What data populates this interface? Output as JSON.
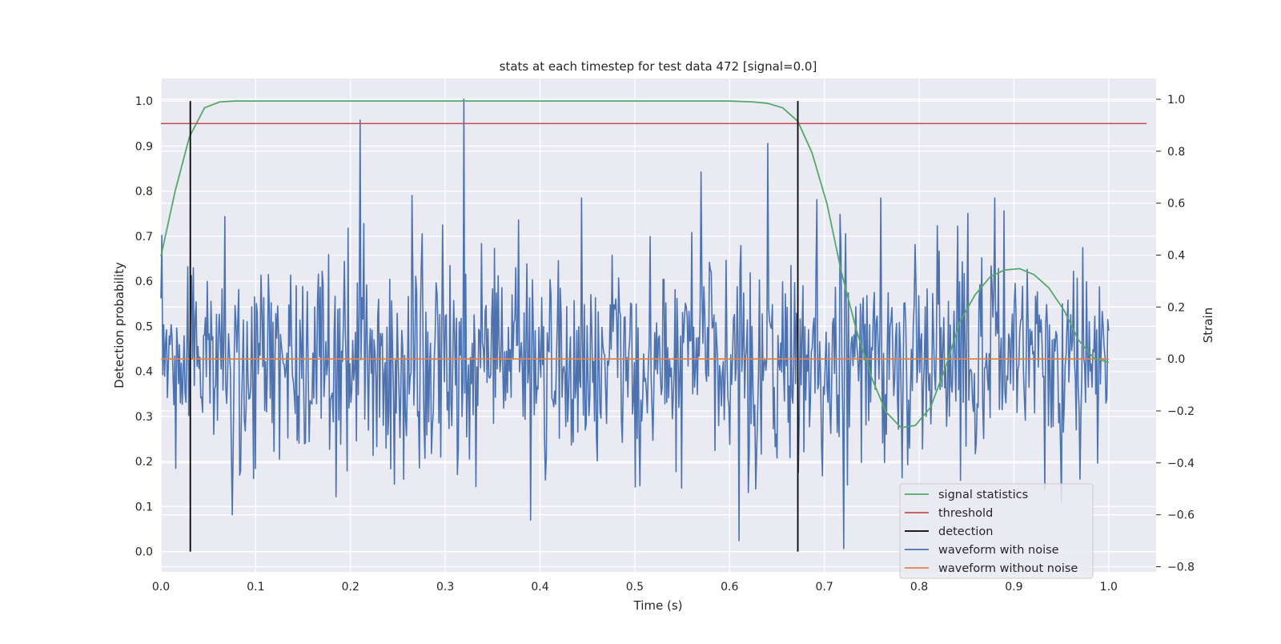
{
  "chart_data": {
    "type": "line",
    "title": "stats at each timestep for test data 472 [signal=0.0]",
    "xlabel": "Time (s)",
    "ylabel": "Detection probability",
    "ylabel_right": "Strain",
    "xlim": [
      0.0,
      1.05
    ],
    "ylim": [
      -0.045,
      1.05
    ],
    "ylim_right": [
      -0.82,
      1.08
    ],
    "xticks": [
      "0.0",
      "0.1",
      "0.2",
      "0.3",
      "0.4",
      "0.5",
      "0.6",
      "0.7",
      "0.8",
      "0.9",
      "1.0"
    ],
    "yticks": [
      "0.0",
      "0.1",
      "0.2",
      "0.3",
      "0.4",
      "0.5",
      "0.6",
      "0.7",
      "0.8",
      "0.9",
      "1.0"
    ],
    "yticks_right": [
      "−0.8",
      "−0.6",
      "−0.4",
      "−0.2",
      "0.0",
      "0.2",
      "0.4",
      "0.6",
      "0.8",
      "1.0"
    ],
    "grid": true,
    "legend_position": "lower-right",
    "colors": {
      "signal": "#55a868",
      "threshold": "#c44e52",
      "detection": "#000000",
      "noisy": "#4c72b0",
      "clean": "#dd8452",
      "axes_bg": "#eaeaf2",
      "grid": "#ffffff"
    },
    "series": [
      {
        "name": "signal statistics",
        "axis": "left",
        "x": [
          0.0,
          0.015,
          0.03,
          0.046,
          0.062,
          0.078,
          0.1,
          0.2,
          0.3,
          0.4,
          0.5,
          0.6,
          0.625,
          0.64,
          0.656,
          0.672,
          0.687,
          0.703,
          0.718,
          0.734,
          0.75,
          0.765,
          0.781,
          0.796,
          0.812,
          0.828,
          0.843,
          0.859,
          0.875,
          0.89,
          0.906,
          0.921,
          0.937,
          0.953,
          0.968,
          0.984,
          1.0
        ],
        "y": [
          0.655,
          0.8,
          0.92,
          0.985,
          0.998,
          1.0,
          1.0,
          1.0,
          1.0,
          1.0,
          1.0,
          1.0,
          0.998,
          0.995,
          0.985,
          0.955,
          0.885,
          0.77,
          0.62,
          0.49,
          0.385,
          0.31,
          0.275,
          0.28,
          0.32,
          0.41,
          0.51,
          0.57,
          0.61,
          0.625,
          0.628,
          0.615,
          0.585,
          0.535,
          0.47,
          0.43,
          0.42
        ]
      },
      {
        "name": "threshold",
        "axis": "left",
        "x": [
          0.0,
          1.04
        ],
        "y": [
          0.95,
          0.95
        ]
      },
      {
        "name": "detection",
        "axis": "left",
        "x": [
          0.031,
          0.672
        ],
        "y_range": [
          0.0,
          1.0
        ]
      },
      {
        "name": "waveform with noise",
        "axis": "right",
        "x_start": 0.0,
        "x_end": 1.0,
        "samples": 1024,
        "seed": 472,
        "std": 0.21,
        "spikes": [
          {
            "x": 0.21,
            "y": 0.92
          },
          {
            "x": 0.32,
            "y": 1.0
          },
          {
            "x": 0.57,
            "y": 0.72
          },
          {
            "x": 0.64,
            "y": 0.83
          },
          {
            "x": 0.61,
            "y": -0.7
          },
          {
            "x": 0.72,
            "y": -0.73
          },
          {
            "x": 0.95,
            "y": -0.55
          },
          {
            "x": 0.075,
            "y": -0.6
          },
          {
            "x": 0.89,
            "y": 0.57
          },
          {
            "x": 0.265,
            "y": 0.63
          }
        ]
      },
      {
        "name": "waveform without noise",
        "axis": "right",
        "x": [
          0.0,
          1.0
        ],
        "y": [
          0.0,
          0.0
        ]
      }
    ]
  }
}
